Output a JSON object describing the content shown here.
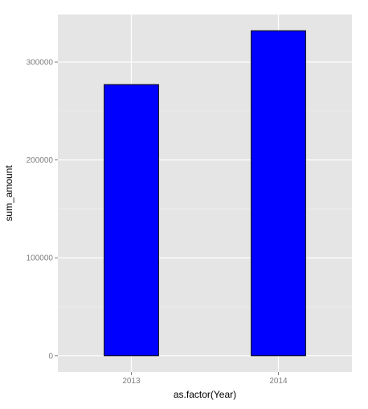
{
  "chart_data": {
    "type": "bar",
    "categories": [
      "2013",
      "2014"
    ],
    "values": [
      277000,
      332000
    ],
    "xlabel": "as.factor(Year)",
    "ylabel": "sum_amount",
    "ylim": [
      -16600,
      348600
    ],
    "yticks": [
      0,
      100000,
      200000,
      300000
    ],
    "ytick_labels": [
      "0",
      "100000",
      "200000",
      "300000"
    ],
    "grid": true,
    "colors": {
      "panel": "#e5e5e5",
      "grid_major": "#ffffff",
      "grid_minor": "#f2f2f2",
      "bar_fill": "#0000ff",
      "bar_stroke": "#000000",
      "tick_text": "#7f7f7f"
    }
  }
}
